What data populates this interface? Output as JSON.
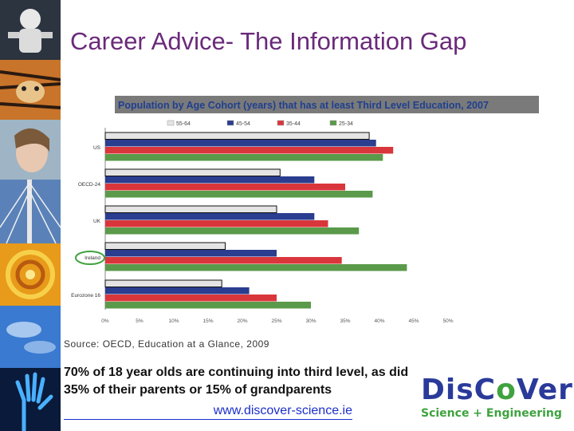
{
  "slide": {
    "title": "Career Advice- The Information Gap",
    "source": "Source: OECD, Education at a Glance, 2009",
    "body_line1": "70%  of 18 year olds are continuing into third level, as did",
    "body_line2": "35% of their parents or 15% of  grandparents",
    "link": "www.discover-science.ie",
    "logo_word_a": "DisC",
    "logo_word_b": "o",
    "logo_word_c": "Ver",
    "logo_sub": "Science + Engineering",
    "strip_images": [
      "astronaut-icon",
      "tiger-icon",
      "girl-icon",
      "bridge-icon",
      "spiral-icon",
      "hand-icon"
    ]
  },
  "colors": {
    "title": "#6a2a7a",
    "chart_header_bg": "#7a7a7a",
    "chart_header_text": "#1f3f8f",
    "logo_blue": "#2a3a9a",
    "logo_green": "#3fa23f",
    "highlight_circle": "#3fa23f"
  },
  "chart_data": {
    "type": "bar",
    "orientation": "horizontal",
    "title": "Population by Age Cohort (years) that has at least Third Level Education, 2007",
    "categories": [
      "US",
      "OECD-24",
      "UK",
      "Ireland",
      "Eurozone 16"
    ],
    "highlighted_category": "Ireland",
    "series": [
      {
        "name": "55-64",
        "color": "#e4e4e4",
        "values": [
          38.5,
          25.5,
          25,
          17.5,
          17
        ]
      },
      {
        "name": "45-54",
        "color": "#2a3d8f",
        "values": [
          39.5,
          30.5,
          30.5,
          25,
          21
        ]
      },
      {
        "name": "35-44",
        "color": "#d9363b",
        "values": [
          42,
          35,
          32.5,
          34.5,
          25
        ]
      },
      {
        "name": "25-34",
        "color": "#5a9a4a",
        "values": [
          40.5,
          39,
          37,
          44,
          30
        ]
      }
    ],
    "x_ticks": [
      "0%",
      "5%",
      "10%",
      "15%",
      "20%",
      "25%",
      "30%",
      "35%",
      "40%",
      "45%",
      "50%"
    ],
    "xlim": [
      0,
      50
    ],
    "grid": false,
    "legend_position": "top"
  }
}
